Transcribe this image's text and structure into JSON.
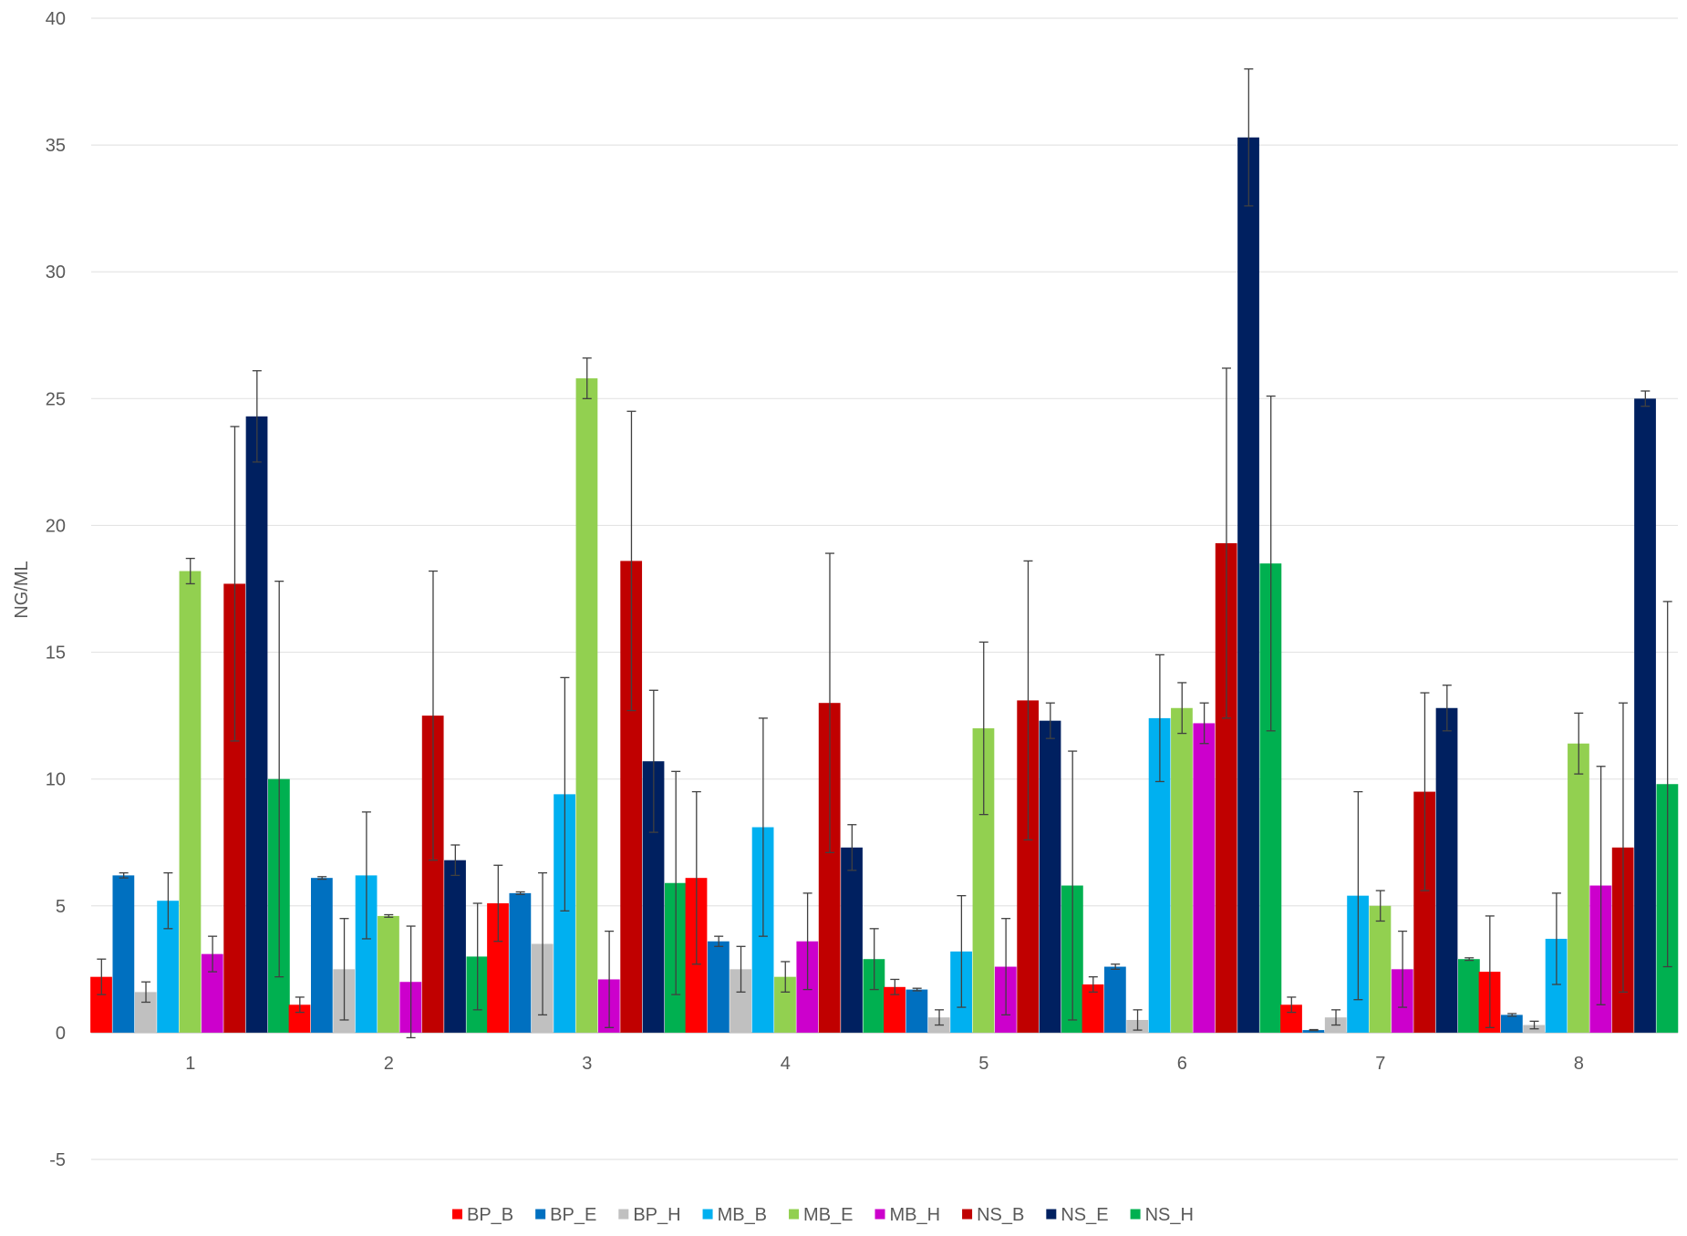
{
  "chart_data": {
    "type": "bar",
    "title": "",
    "xlabel": "",
    "ylabel": "NG/ML",
    "ylim": [
      -5,
      40
    ],
    "yticks": [
      -5,
      0,
      5,
      10,
      15,
      20,
      25,
      30,
      35,
      40
    ],
    "grid": true,
    "legend_position": "bottom",
    "categories": [
      "1",
      "2",
      "3",
      "4",
      "5",
      "6",
      "7",
      "8"
    ],
    "series": [
      {
        "name": "BP_B",
        "color": "#ff0000",
        "values": [
          2.2,
          1.1,
          5.1,
          6.1,
          1.8,
          1.9,
          1.1,
          2.4
        ],
        "errors": [
          0.7,
          0.3,
          1.5,
          3.4,
          0.3,
          0.3,
          0.3,
          2.2
        ]
      },
      {
        "name": "BP_E",
        "color": "#0070c0",
        "values": [
          6.2,
          6.1,
          5.5,
          3.6,
          1.7,
          2.6,
          0.1,
          0.7
        ],
        "errors": [
          0.1,
          0.05,
          0.05,
          0.2,
          0.05,
          0.1,
          0.02,
          0.05
        ]
      },
      {
        "name": "BP_H",
        "color": "#c0c0c0",
        "values": [
          1.6,
          2.5,
          3.5,
          2.5,
          0.6,
          0.5,
          0.6,
          0.3
        ],
        "errors": [
          0.4,
          2.0,
          2.8,
          0.9,
          0.3,
          0.4,
          0.3,
          0.15
        ]
      },
      {
        "name": "MB_B",
        "color": "#00b0f0",
        "values": [
          5.2,
          6.2,
          9.4,
          8.1,
          3.2,
          12.4,
          5.4,
          3.7
        ],
        "errors": [
          1.1,
          2.5,
          4.6,
          4.3,
          2.2,
          2.5,
          4.1,
          1.8
        ]
      },
      {
        "name": "MB_E",
        "color": "#92d050",
        "values": [
          18.2,
          4.6,
          25.8,
          2.2,
          12.0,
          12.8,
          5.0,
          11.4
        ],
        "errors": [
          0.5,
          0.05,
          0.8,
          0.6,
          3.4,
          1.0,
          0.6,
          1.2
        ]
      },
      {
        "name": "MB_H",
        "color": "#cc00cc",
        "values": [
          3.1,
          2.0,
          2.1,
          3.6,
          2.6,
          12.2,
          2.5,
          5.8
        ],
        "errors": [
          0.7,
          2.2,
          1.9,
          1.9,
          1.9,
          0.8,
          1.5,
          4.7
        ]
      },
      {
        "name": "NS_B",
        "color": "#c00000",
        "values": [
          17.7,
          12.5,
          18.6,
          13.0,
          13.1,
          19.3,
          9.5,
          7.3
        ],
        "errors": [
          6.2,
          5.7,
          5.9,
          5.9,
          5.5,
          6.9,
          3.9,
          5.7
        ]
      },
      {
        "name": "NS_E",
        "color": "#002060",
        "values": [
          24.3,
          6.8,
          10.7,
          7.3,
          12.3,
          35.3,
          12.8,
          25.0
        ],
        "errors": [
          1.8,
          0.6,
          2.8,
          0.9,
          0.7,
          2.7,
          0.9,
          0.3
        ]
      },
      {
        "name": "NS_H",
        "color": "#00b050",
        "values": [
          10.0,
          3.0,
          5.9,
          2.9,
          5.8,
          18.5,
          2.9,
          9.8
        ],
        "errors": [
          7.8,
          2.1,
          4.4,
          1.2,
          5.3,
          6.6,
          0.05,
          7.2
        ]
      }
    ]
  }
}
